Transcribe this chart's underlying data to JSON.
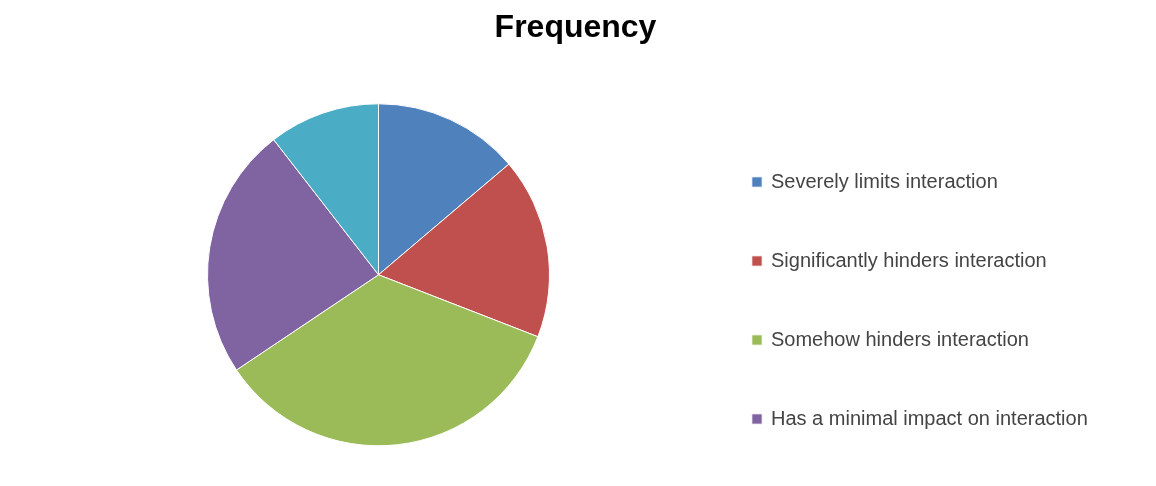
{
  "chart_data": {
    "type": "pie",
    "title": "Frequency",
    "categories": [
      "Severely limits interaction",
      "Significantly hinders interaction",
      "Somehow hinders interaction",
      "Has a minimal impact on interaction",
      null
    ],
    "values": [
      13.8,
      17.1,
      34.7,
      23.9,
      10.5
    ],
    "colors": [
      "#4f81bd",
      "#c0504d",
      "#9bbb59",
      "#8064a2",
      "#4bacc6"
    ],
    "legend": "right"
  }
}
